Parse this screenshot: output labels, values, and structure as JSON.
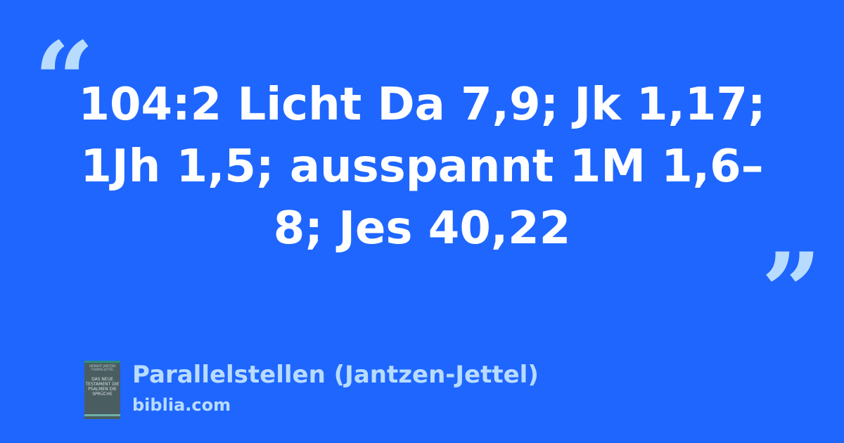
{
  "quote": {
    "open": "“",
    "close": "”",
    "text": "104:2 Licht Da 7,9; Jk 1,17; 1Jh 1,5; ausspannt 1M 1,6–8; Jes 40,22"
  },
  "source": {
    "title": "Parallelstellen (Jantzen-Jettel)",
    "site": "biblia.com",
    "cover": {
      "authors": "HERBERT JANTZEN THOMAS JETTEL",
      "title": "DAS NEUE TESTAMENT DIE PSALMEN DIE SPRÜCHE"
    }
  },
  "colors": {
    "background": "#1f66ff",
    "accent": "#b8dcff",
    "text": "#ffffff"
  }
}
